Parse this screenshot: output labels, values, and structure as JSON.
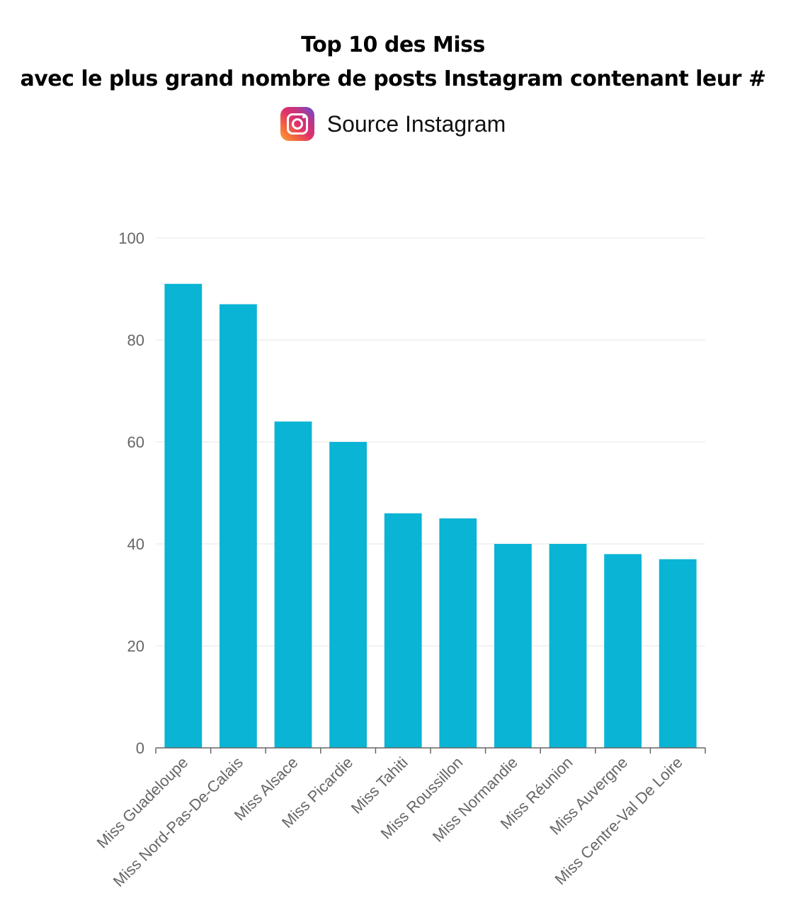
{
  "header": {
    "title_line1": "Top 10 des Miss",
    "title_line2": "avec le plus grand nombre de posts Instagram contenant leur #",
    "source_text": "Source Instagram",
    "source_icon": "instagram-icon"
  },
  "colors": {
    "bar": "#09b4d4",
    "grid": "#e6e6e6",
    "axis": "#666666"
  },
  "chart_data": {
    "type": "bar",
    "title": "Top 10 des Miss avec le plus grand nombre de posts Instagram contenant leur #",
    "categories": [
      "Miss Guadeloupe",
      "Miss Nord-Pas-De-Calais",
      "Miss Alsace",
      "Miss Picardie",
      "Miss Tahiti",
      "Miss Roussillon",
      "Miss Normandie",
      "Miss Réunion",
      "Miss Auvergne",
      "Miss Centre-Val De Loire"
    ],
    "values": [
      91,
      87,
      64,
      60,
      46,
      45,
      40,
      40,
      38,
      37
    ],
    "xlabel": "",
    "ylabel": "",
    "ylim": [
      0,
      100
    ],
    "yticks": [
      0,
      20,
      40,
      60,
      80,
      100
    ],
    "grid": true,
    "legend": "none"
  }
}
